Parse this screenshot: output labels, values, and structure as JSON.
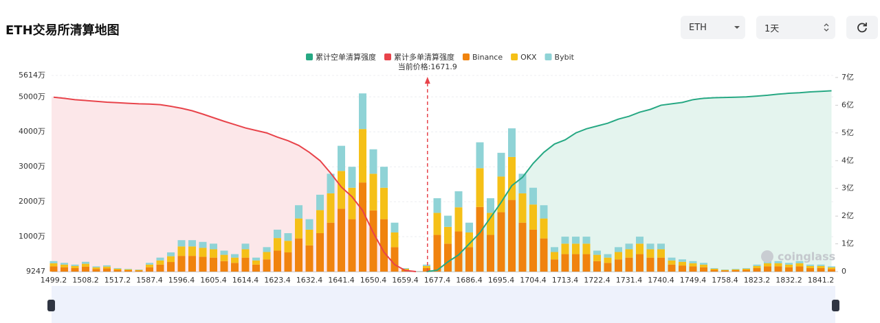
{
  "toolbar": {
    "title": "ETH交易所清算地图",
    "coin": "ETH",
    "period": "1天"
  },
  "chart_data": {
    "type": "bar",
    "stacked": true,
    "categories": [
      "1499.2",
      null,
      null,
      "1508.2",
      null,
      null,
      "1517.2",
      null,
      null,
      "1587.4",
      null,
      null,
      "1596.4",
      null,
      null,
      "1605.4",
      null,
      null,
      "1614.4",
      null,
      null,
      "1623.4",
      null,
      null,
      "1632.4",
      null,
      null,
      "1641.4",
      null,
      null,
      "1650.4",
      null,
      null,
      "1659.4",
      null,
      null,
      "1677.4",
      null,
      null,
      "1686.4",
      null,
      null,
      "1695.4",
      null,
      null,
      "1704.4",
      null,
      null,
      "1713.4",
      null,
      null,
      "1722.4",
      null,
      null,
      "1731.4",
      null,
      null,
      "1740.4",
      null,
      null,
      "1749.4",
      null,
      null,
      "1758.4",
      null,
      null,
      "1823.2",
      null,
      null,
      "1832.2",
      null,
      null,
      "1841.2",
      null
    ],
    "series": [
      {
        "name": "累计空单清算强度",
        "type": "line",
        "axis": "y2",
        "color": "#26a883",
        "area_color": "#e4f4ee",
        "values": [
          null,
          null,
          null,
          null,
          null,
          null,
          null,
          null,
          null,
          null,
          null,
          null,
          null,
          null,
          null,
          null,
          null,
          null,
          null,
          null,
          null,
          null,
          null,
          null,
          null,
          null,
          null,
          null,
          null,
          null,
          null,
          null,
          null,
          null,
          null,
          0,
          5000000,
          35000000,
          60000000,
          100000000,
          140000000,
          195000000,
          250000000,
          310000000,
          340000000,
          390000000,
          430000000,
          460000000,
          475000000,
          500000000,
          515000000,
          525000000,
          535000000,
          550000000,
          560000000,
          575000000,
          585000000,
          600000000,
          605000000,
          610000000,
          620000000,
          625000000,
          627000000,
          628000000,
          629000000,
          630000000,
          633000000,
          636000000,
          640000000,
          643000000,
          645000000,
          648000000,
          650000000,
          652000000
        ]
      },
      {
        "name": "累计多单清算强度",
        "type": "line",
        "axis": "y2",
        "color": "#e8434a",
        "area_color": "#fce7e9",
        "values": [
          629000000,
          625000000,
          620000000,
          617000000,
          614000000,
          611000000,
          609000000,
          607000000,
          605000000,
          604000000,
          602000000,
          596000000,
          589000000,
          580000000,
          568000000,
          555000000,
          542000000,
          530000000,
          518000000,
          509000000,
          500000000,
          485000000,
          472000000,
          455000000,
          430000000,
          400000000,
          355000000,
          305000000,
          270000000,
          220000000,
          140000000,
          70000000,
          25000000,
          4000000,
          0,
          null,
          null,
          null,
          null,
          null,
          null,
          null,
          null,
          null,
          null,
          null,
          null,
          null,
          null,
          null,
          null,
          null,
          null,
          null,
          null,
          null,
          null,
          null,
          null,
          null,
          null,
          null,
          null,
          null,
          null,
          null,
          null,
          null,
          null,
          null,
          null,
          null,
          null,
          null
        ]
      },
      {
        "name": "Binance",
        "color": "#f0830e",
        "values": [
          1500000,
          1250000,
          1000000,
          1400000,
          750000,
          900000,
          500000,
          400000,
          300000,
          1250000,
          2000000,
          2750000,
          4500000,
          4500000,
          4250000,
          4000000,
          3000000,
          2500000,
          4000000,
          2000000,
          3500000,
          6000000,
          5500000,
          9500000,
          7500000,
          11000000,
          14000000,
          18000000,
          15000000,
          25500000,
          17500000,
          15000000,
          7000000,
          500000,
          0,
          1000000,
          10500000,
          8000000,
          11500000,
          7000000,
          18500000,
          10500000,
          17000000,
          20500000,
          14000000,
          12000000,
          9500000,
          3500000,
          5000000,
          5000000,
          5000000,
          3000000,
          2500000,
          3500000,
          4000000,
          5000000,
          4000000,
          4000000,
          2000000,
          1750000,
          1500000,
          1250000,
          500000,
          300000,
          400000,
          500000,
          1000000,
          1500000,
          1500000,
          1250000,
          1500000,
          1000000,
          1000000,
          750000
        ]
      },
      {
        "name": "OKX",
        "color": "#f5c017",
        "values": [
          900000,
          750000,
          600000,
          840000,
          450000,
          540000,
          300000,
          240000,
          180000,
          750000,
          1200000,
          1650000,
          2700000,
          2700000,
          2550000,
          2400000,
          1800000,
          1500000,
          2400000,
          1200000,
          2100000,
          3600000,
          3300000,
          5700000,
          4500000,
          6600000,
          8400000,
          10800000,
          9000000,
          15300000,
          10500000,
          9000000,
          4200000,
          300000,
          0,
          600000,
          6300000,
          4800000,
          6900000,
          4200000,
          11100000,
          6300000,
          10200000,
          12300000,
          8400000,
          7200000,
          5700000,
          2100000,
          3000000,
          3000000,
          3000000,
          1800000,
          1500000,
          2100000,
          2400000,
          3000000,
          2400000,
          2400000,
          1200000,
          1050000,
          900000,
          750000,
          300000,
          180000,
          240000,
          300000,
          600000,
          900000,
          900000,
          750000,
          900000,
          600000,
          600000,
          450000
        ]
      },
      {
        "name": "Bybit",
        "color": "#8fd3d6",
        "values": [
          600000,
          500000,
          400000,
          560000,
          300000,
          360000,
          200000,
          160000,
          120000,
          500000,
          800000,
          1100000,
          1800000,
          1800000,
          1700000,
          1600000,
          1200000,
          1000000,
          1600000,
          800000,
          1400000,
          2400000,
          2200000,
          3800000,
          3000000,
          4400000,
          5600000,
          7200000,
          6000000,
          10200000,
          7000000,
          6000000,
          2800000,
          200000,
          0,
          400000,
          4200000,
          3200000,
          4600000,
          2800000,
          7400000,
          4200000,
          6800000,
          8200000,
          5600000,
          4800000,
          3800000,
          1400000,
          2000000,
          2000000,
          2000000,
          1200000,
          1000000,
          1400000,
          1600000,
          2000000,
          1600000,
          1600000,
          800000,
          700000,
          600000,
          500000,
          200000,
          120000,
          160000,
          200000,
          400000,
          600000,
          600000,
          500000,
          600000,
          400000,
          400000,
          300000
        ]
      }
    ],
    "ylim": [
      9247,
      56140000
    ],
    "yticks": [
      9247,
      {
        "value": 10000000,
        "label": "1000万"
      },
      {
        "value": 20000000,
        "label": "2000万"
      },
      {
        "value": 30000000,
        "label": "3000万"
      },
      {
        "value": 40000000,
        "label": "4000万"
      },
      {
        "value": 50000000,
        "label": "5000万"
      },
      {
        "value": 56140000,
        "label": "5614万"
      }
    ],
    "y2lim": [
      0,
      700000000
    ],
    "y2ticks": [
      0,
      {
        "value": 100000000,
        "label": "1亿"
      },
      {
        "value": 200000000,
        "label": "2亿"
      },
      {
        "value": 300000000,
        "label": "3亿"
      },
      {
        "value": 400000000,
        "label": "4亿"
      },
      {
        "value": 500000000,
        "label": "5亿"
      },
      {
        "value": 600000000,
        "label": "6亿"
      },
      {
        "value": 700000000,
        "label": "7亿"
      }
    ],
    "current_price": {
      "value": 1671.9,
      "label": "当前价格:1671.9"
    },
    "watermark": "coinglass",
    "grid": true,
    "legend": "top"
  }
}
